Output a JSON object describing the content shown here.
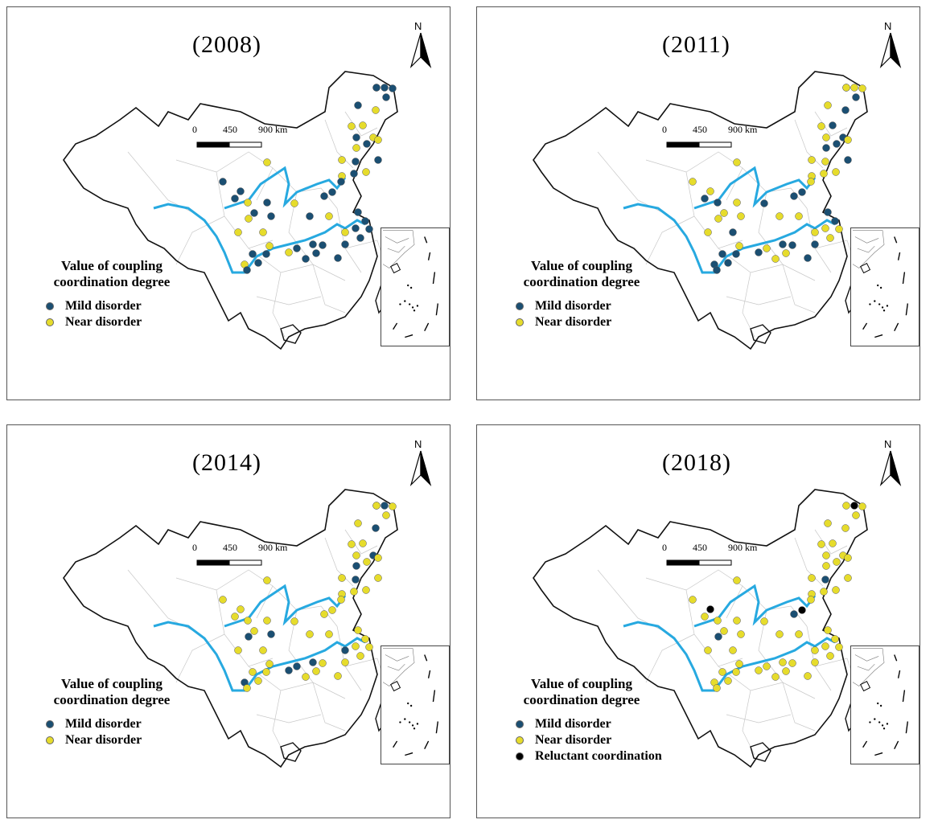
{
  "colors": {
    "mild": "#1b4f72",
    "near": "#e6dc2c",
    "reluctant": "#000000",
    "river": "#27a9e0",
    "border": "#111111",
    "province": "#bdbdbd"
  },
  "north_label": "N",
  "scale": {
    "labels": [
      "0",
      "450",
      "900 km"
    ]
  },
  "legend_title_line1": "Value of coupling",
  "legend_title_line2": "coordination degree",
  "panels": [
    {
      "title": "(2008)",
      "legend": [
        {
          "label": "Mild disorder",
          "class": "mild"
        },
        {
          "label": "Near disorder",
          "class": "near"
        }
      ],
      "points": {
        "mild": 37,
        "near": 20,
        "reluctant": 0
      }
    },
    {
      "title": "(2011)",
      "legend": [
        {
          "label": "Mild disorder",
          "class": "mild"
        },
        {
          "label": "Near disorder",
          "class": "near"
        }
      ],
      "points": {
        "mild": 26,
        "near": 31,
        "reluctant": 0
      }
    },
    {
      "title": "(2014)",
      "legend": [
        {
          "label": "Mild disorder",
          "class": "mild"
        },
        {
          "label": "Near disorder",
          "class": "near"
        }
      ],
      "points": {
        "mild": 12,
        "near": 45,
        "reluctant": 0
      }
    },
    {
      "title": "(2018)",
      "legend": [
        {
          "label": "Mild disorder",
          "class": "mild"
        },
        {
          "label": "Near disorder",
          "class": "near"
        },
        {
          "label": "Reluctant coordination",
          "class": "reluctant"
        }
      ],
      "points": {
        "mild": 3,
        "near": 50,
        "reluctant": 3
      }
    }
  ]
}
